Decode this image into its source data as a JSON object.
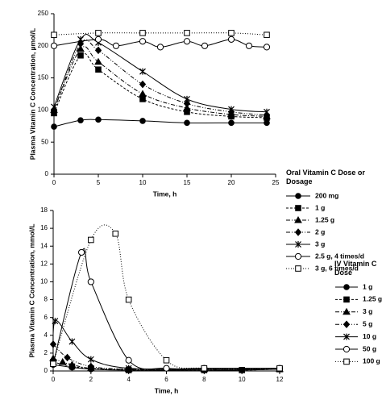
{
  "chart_data": [
    {
      "type": "line",
      "ylabel": "Plasma Vitamin C Concentration, µmol/L",
      "xlabel": "Time, h",
      "legend_title": "Oral Vitamin C Dose or Dosage",
      "xlim": [
        0,
        25
      ],
      "xticks": [
        0,
        5,
        10,
        15,
        20,
        25
      ],
      "ylim": [
        0,
        250
      ],
      "yticks": [
        0,
        50,
        100,
        150,
        200,
        250
      ],
      "series": [
        {
          "name": "200 mg",
          "color": "#000000",
          "dash": "none",
          "marker": "circle-filled",
          "x": [
            0,
            3,
            5,
            10,
            15,
            20,
            24
          ],
          "values": [
            74,
            84,
            85,
            83,
            80,
            80,
            80
          ]
        },
        {
          "name": "1 g",
          "color": "#000000",
          "dash": "3 2",
          "marker": "square-filled",
          "x": [
            0,
            3,
            5,
            10,
            15,
            20,
            24
          ],
          "values": [
            95,
            185,
            163,
            117,
            97,
            90,
            88
          ]
        },
        {
          "name": "1.25 g",
          "color": "#000000",
          "dash": "5 2 1 2",
          "marker": "triangle-filled",
          "x": [
            0,
            3,
            5,
            10,
            15,
            20,
            24
          ],
          "values": [
            100,
            195,
            175,
            125,
            103,
            93,
            90
          ]
        },
        {
          "name": "2 g",
          "color": "#000000",
          "dash": "5 2 1 2 1 2",
          "marker": "diamond-filled",
          "x": [
            0,
            3,
            5,
            10,
            15,
            20,
            24
          ],
          "values": [
            100,
            203,
            193,
            140,
            110,
            97,
            92
          ]
        },
        {
          "name": "3 g",
          "color": "#000000",
          "dash": "none",
          "marker": "star",
          "x": [
            0,
            3,
            5,
            10,
            15,
            20,
            24
          ],
          "values": [
            105,
            210,
            205,
            160,
            117,
            101,
            97
          ]
        },
        {
          "name": "2.5 g, 4 times/d",
          "color": "#000000",
          "dash": "none",
          "marker": "circle-open",
          "x": [
            0,
            5,
            7,
            10,
            12,
            15,
            17,
            20,
            22,
            24
          ],
          "values": [
            200,
            210,
            200,
            207,
            198,
            207,
            200,
            210,
            200,
            198
          ]
        },
        {
          "name": "3 g, 6 times/d",
          "color": "#000000",
          "dash": "1 2",
          "marker": "square-open",
          "x": [
            0,
            5,
            10,
            15,
            20,
            24
          ],
          "values": [
            217,
            220,
            220,
            220,
            220,
            217
          ]
        }
      ]
    },
    {
      "type": "line",
      "ylabel": "Plasma Vitamin C Concentration, mmol/L",
      "xlabel": "Time, h",
      "legend_title": "IV Vitamin C Dose",
      "xlim": [
        0,
        12
      ],
      "xticks": [
        0,
        2,
        4,
        6,
        8,
        10,
        12
      ],
      "ylim": [
        0,
        18
      ],
      "yticks": [
        0,
        2,
        4,
        6,
        8,
        10,
        12,
        14,
        16,
        18
      ],
      "series": [
        {
          "name": "1 g",
          "color": "#000000",
          "dash": "none",
          "marker": "circle-filled",
          "x": [
            0,
            1,
            2,
            4,
            8,
            10,
            12
          ],
          "values": [
            0.7,
            0.4,
            0.2,
            0.1,
            0.1,
            0.1,
            0.2
          ]
        },
        {
          "name": "1.25 g",
          "color": "#000000",
          "dash": "3 2",
          "marker": "square-filled",
          "x": [
            0,
            1,
            2,
            4,
            8,
            10,
            12
          ],
          "values": [
            1.0,
            0.5,
            0.3,
            0.1,
            0.1,
            0.1,
            0.2
          ]
        },
        {
          "name": "3 g",
          "color": "#000000",
          "dash": "5 2 1 2",
          "marker": "triangle-filled",
          "x": [
            0,
            0.5,
            1,
            2,
            4,
            8,
            12
          ],
          "values": [
            1.4,
            1.0,
            0.7,
            0.3,
            0.2,
            0.2,
            0.2
          ]
        },
        {
          "name": "5 g",
          "color": "#000000",
          "dash": "5 2 1 2 1 2",
          "marker": "diamond-filled",
          "x": [
            0,
            0.75,
            2,
            4,
            8,
            12
          ],
          "values": [
            3.0,
            1.5,
            0.5,
            0.2,
            0.2,
            0.2
          ]
        },
        {
          "name": "10 g",
          "color": "#000000",
          "dash": "none",
          "marker": "star",
          "x": [
            0,
            0.1,
            1,
            2,
            4,
            8,
            12
          ],
          "values": [
            0.8,
            5.6,
            3.3,
            1.3,
            0.3,
            0.2,
            0.2
          ]
        },
        {
          "name": "50 g",
          "color": "#000000",
          "dash": "none",
          "marker": "circle-open",
          "x": [
            0,
            1.5,
            2,
            4,
            6,
            8,
            12
          ],
          "values": [
            0.8,
            13.3,
            10,
            1.2,
            0.3,
            0.3,
            0.3
          ]
        },
        {
          "name": "100 g",
          "color": "#000000",
          "dash": "1 2",
          "marker": "square-open",
          "x": [
            0,
            2,
            3.3,
            4,
            6,
            8,
            12
          ],
          "values": [
            0.8,
            14.7,
            15.4,
            8,
            1.2,
            0.3,
            0.3
          ]
        }
      ]
    }
  ]
}
